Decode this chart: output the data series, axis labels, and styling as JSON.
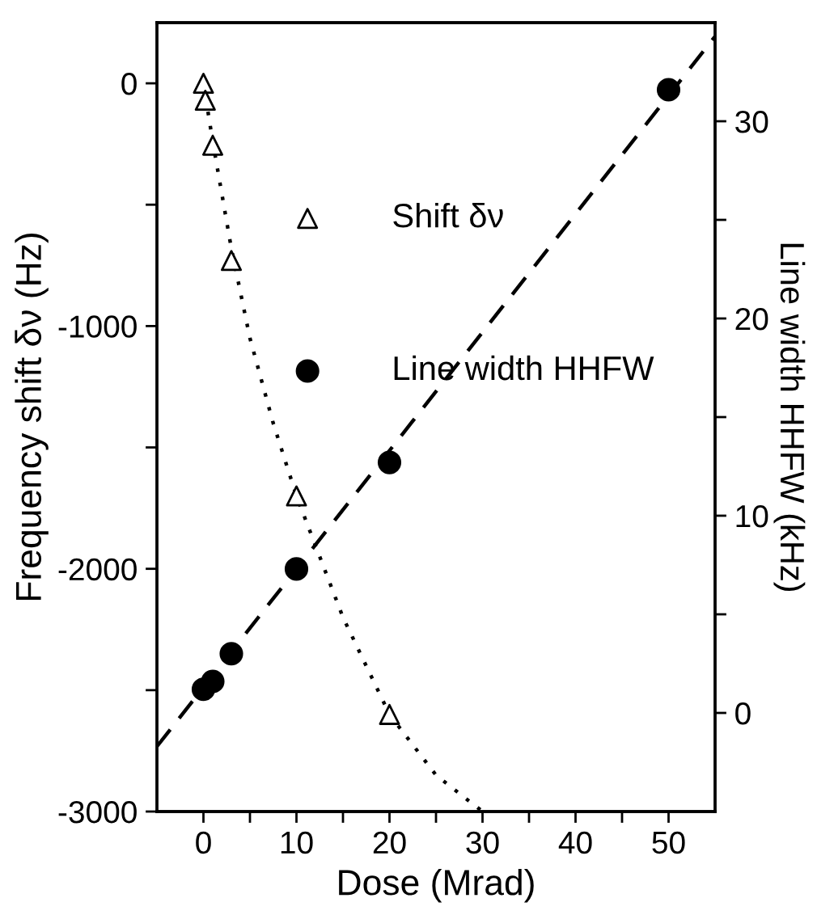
{
  "chart_data": {
    "type": "scatter",
    "xlabel": "Dose (Mrad)",
    "ylabel": "Frequency shift δν (Hz)",
    "y2label": "Line width HHFW (kHz)",
    "xlim": [
      -5,
      55
    ],
    "xticks": [
      0,
      {
        "value": 5,
        "label": null
      },
      10,
      {
        "value": 15,
        "label": null
      },
      20,
      {
        "value": 25,
        "label": null
      },
      30,
      {
        "value": 35,
        "label": null
      },
      40,
      {
        "value": 45,
        "label": null
      },
      50
    ],
    "ylim": [
      -3000,
      250
    ],
    "yticks": [
      -3000,
      {
        "value": -2500,
        "label": null
      },
      -2000,
      {
        "value": -1500,
        "label": null
      },
      -1000,
      {
        "value": -500,
        "label": null
      },
      0
    ],
    "y2lim": [
      -5,
      35
    ],
    "y2ticks": [
      0,
      {
        "value": 5,
        "label": null
      },
      10,
      {
        "value": 15,
        "label": null
      },
      20,
      {
        "value": 25,
        "label": null
      },
      30
    ],
    "grid": false,
    "legend": "top",
    "series": [
      {
        "name": "Shift δν",
        "marker": "triangle",
        "color": "#000000",
        "x": [
          0,
          0.2,
          1,
          3,
          10,
          20
        ],
        "values": [
          0,
          -70,
          -255,
          -730,
          -1700,
          -2600
        ]
      },
      {
        "name": "Line width HHFW",
        "marker": "circle",
        "color": "#000000",
        "axis": "y2",
        "x": [
          0,
          1,
          3,
          10,
          20,
          50
        ],
        "values": [
          1.2,
          1.6,
          3.0,
          7.3,
          12.7,
          31.6
        ]
      },
      {
        "type": "line",
        "line_style": "dotted",
        "marker": "none",
        "color": "#000000",
        "x": [
          0,
          1,
          3,
          5,
          7.5,
          10,
          15,
          20,
          25,
          30
        ],
        "values": [
          0,
          -240,
          -680,
          -1050,
          -1400,
          -1700,
          -2200,
          -2600,
          -2850,
          -3000
        ]
      },
      {
        "type": "line",
        "line_style": "dashed",
        "marker": "none",
        "color": "#000000",
        "axis": "y2",
        "x": [
          -5,
          55
        ],
        "values": [
          -1.7,
          34.3
        ]
      }
    ]
  }
}
